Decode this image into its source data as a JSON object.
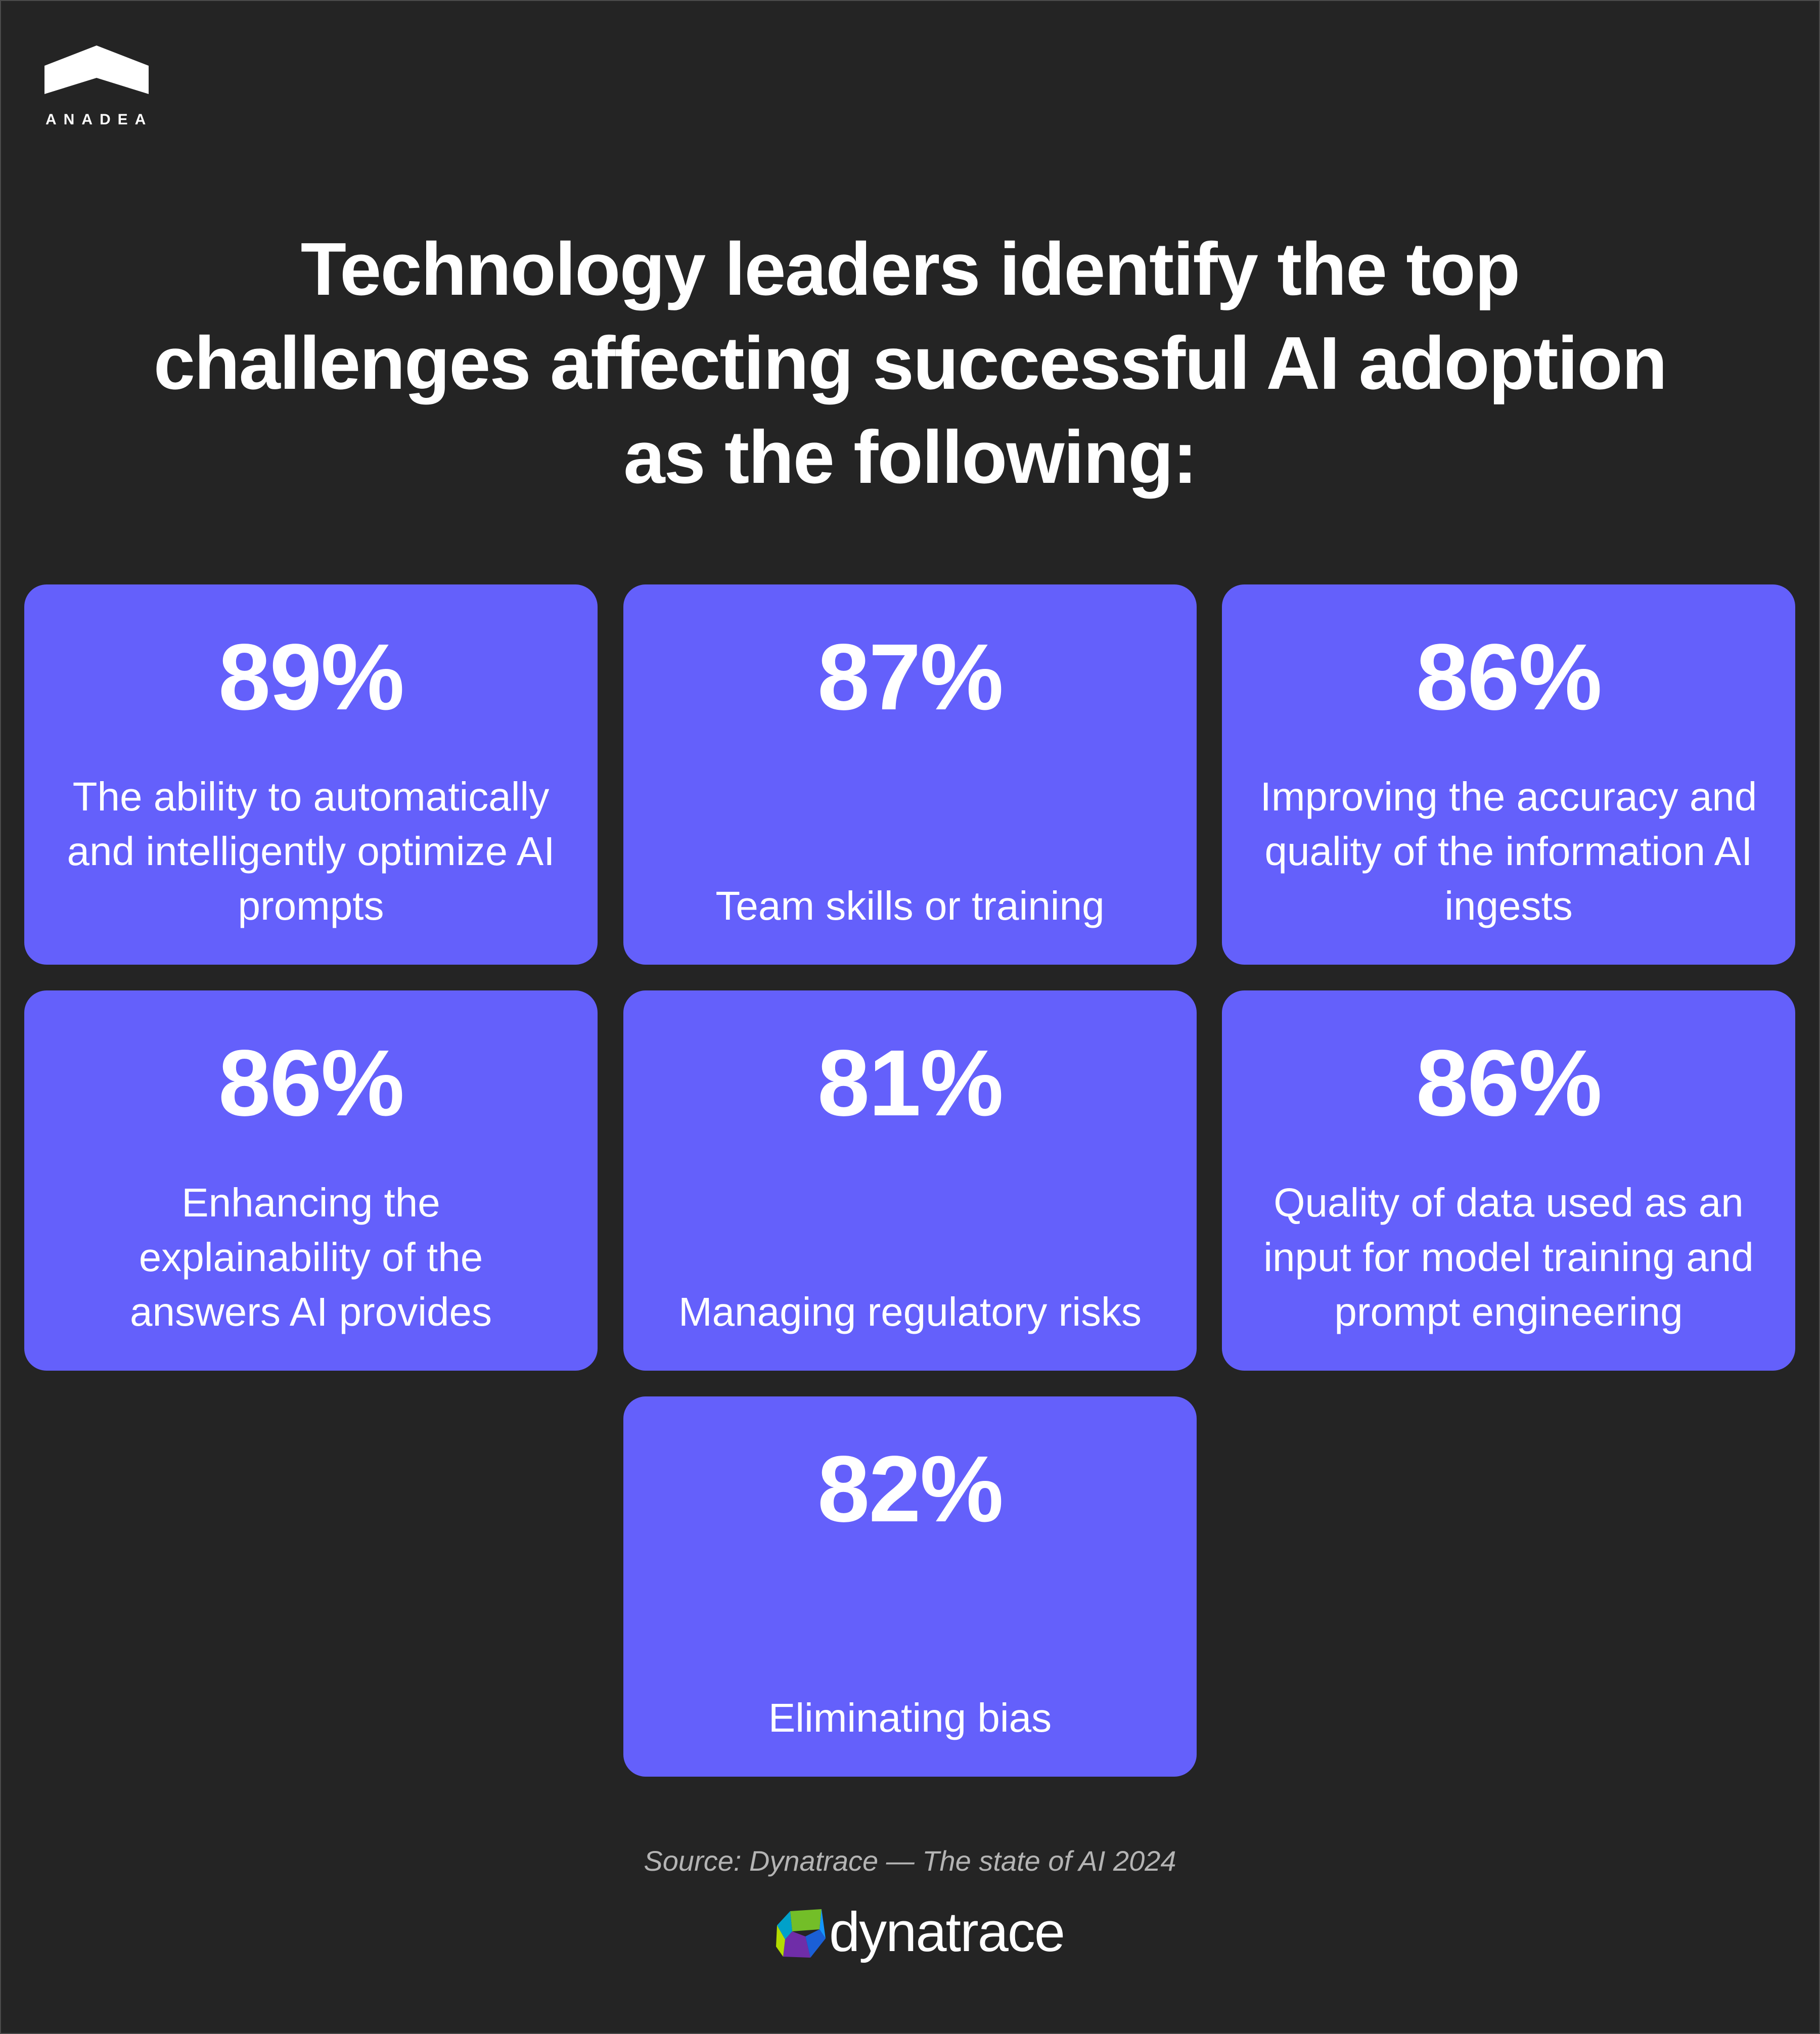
{
  "logo": {
    "name": "ANADEA",
    "icon": "house-roof-icon"
  },
  "title": {
    "lines": [
      "Technology leaders identify the top",
      "challenges affecting successful AI adoption",
      "as the following:"
    ]
  },
  "cards": [
    {
      "percent": "89%",
      "value": 89,
      "desc": [
        "The ability to automatically",
        "and intelligently optimize AI",
        "prompts"
      ]
    },
    {
      "percent": "87%",
      "value": 87,
      "desc": [
        "Team skills or training"
      ]
    },
    {
      "percent": "86%",
      "value": 86,
      "desc": [
        "Improving the accuracy and",
        "quality of the information AI",
        "ingests"
      ]
    },
    {
      "percent": "86%",
      "value": 86,
      "desc": [
        "Enhancing the",
        "explainability of the",
        "answers AI provides"
      ]
    },
    {
      "percent": "81%",
      "value": 81,
      "desc": [
        "Managing regulatory risks"
      ]
    },
    {
      "percent": "86%",
      "value": 86,
      "desc": [
        "Quality of data used as an",
        "input for model training and",
        "prompt engineering"
      ]
    },
    {
      "percent": "82%",
      "value": 82,
      "desc": [
        "Eliminating bias"
      ]
    }
  ],
  "source": "Source: Dynatrace — The state of AI 2024",
  "brand": {
    "name": "dynatrace",
    "icon": "dynatrace-logo-icon"
  },
  "colors": {
    "background": "#242424",
    "card": "#6460fb",
    "text": "#ffffff",
    "source_text": "#b4b4b4"
  }
}
